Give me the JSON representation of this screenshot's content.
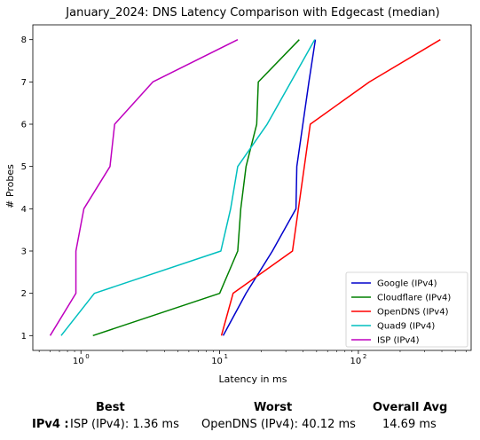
{
  "chart_data": {
    "type": "line",
    "title": "January_2024: DNS Latency Comparison with Edgecast (median)",
    "xlabel": "Latency in ms",
    "ylabel": "# Probes",
    "xscale": "log",
    "xlim": [
      0.45,
      650
    ],
    "ylim": [
      0.65,
      8.35
    ],
    "x_ticks": [
      1,
      10,
      100
    ],
    "x_tick_labels": [
      "10",
      "10",
      "10"
    ],
    "x_tick_exponents": [
      "0",
      "1",
      "2"
    ],
    "y_ticks": [
      1,
      2,
      3,
      4,
      5,
      6,
      7,
      8
    ],
    "y_tick_labels": [
      "1",
      "2",
      "3",
      "4",
      "5",
      "6",
      "7",
      "8"
    ],
    "grid": false,
    "legend_position": "bottom-right",
    "series": [
      {
        "name": "Google (IPv4)",
        "color": "#0000cc",
        "x": [
          10.6,
          15.5,
          24.0,
          35.5,
          36.0,
          44.0,
          49.0
        ],
        "y": [
          1,
          2,
          3,
          4,
          5,
          7,
          8
        ]
      },
      {
        "name": "Cloudflare (IPv4)",
        "color": "#008000",
        "x": [
          1.22,
          10.0,
          13.5,
          14.2,
          15.5,
          18.5,
          19.0,
          37.5
        ],
        "y": [
          1,
          2,
          3,
          4,
          5,
          6,
          7,
          8
        ]
      },
      {
        "name": "OpenDNS (IPv4)",
        "color": "#ff0000",
        "x": [
          10.3,
          12.5,
          33.5,
          45.0,
          120.0,
          390.0
        ],
        "y": [
          1,
          2,
          3,
          6,
          7,
          8
        ]
      },
      {
        "name": "Quad9 (IPv4)",
        "color": "#00bfbf",
        "x": [
          0.72,
          1.25,
          10.2,
          12.0,
          13.5,
          22.0,
          48.5
        ],
        "y": [
          1,
          2,
          3,
          4,
          5,
          6,
          8
        ]
      },
      {
        "name": "ISP (IPv4)",
        "color": "#bf00bf",
        "x": [
          0.6,
          0.92,
          0.92,
          1.05,
          1.62,
          1.75,
          3.3,
          13.5
        ],
        "y": [
          1,
          2,
          3,
          4,
          5,
          6,
          7,
          8
        ]
      }
    ]
  },
  "summary": {
    "best_header": "Best",
    "worst_header": "Worst",
    "avg_header": "Overall Avg",
    "row_label": "IPv4 :",
    "best_value": "ISP (IPv4): 1.36 ms",
    "worst_value": "OpenDNS (IPv4): 40.12 ms",
    "avg_value": "14.69 ms"
  }
}
